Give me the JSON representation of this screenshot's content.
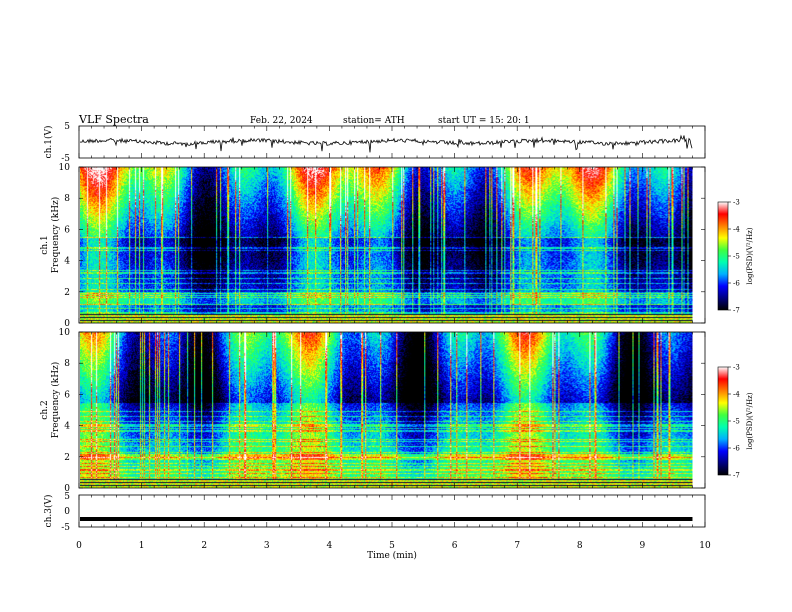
{
  "header": {
    "title": "VLF  Spectra",
    "date": "Feb. 22, 2024",
    "station": "station= ATH",
    "start": "start  UT  =    15: 20: 1"
  },
  "chart_data": [
    {
      "type": "line",
      "panel": "ch1-waveform",
      "ylabel": "ch.1(V)",
      "ylim": [
        -5,
        5
      ],
      "yticks": [
        "5",
        "-5"
      ],
      "xlim": [
        0,
        10
      ],
      "approx_level": 0,
      "data_extent_min": 9.8
    },
    {
      "type": "heatmap",
      "panel": "ch1-spectrogram",
      "ylabel": "Frequency  (kHz)",
      "channel_label": "ch.1",
      "ylim": [
        0,
        10
      ],
      "yticks": [
        "0",
        "2",
        "4",
        "6",
        "8",
        "10"
      ],
      "xlim": [
        0,
        10
      ],
      "data_extent_min": 9.8
    },
    {
      "type": "heatmap",
      "panel": "ch2-spectrogram",
      "ylabel": "Frequency  (kHz)",
      "channel_label": "ch.2",
      "ylim": [
        0,
        10
      ],
      "yticks": [
        "0",
        "2",
        "4",
        "6",
        "8",
        "10"
      ],
      "xlim": [
        0,
        10
      ],
      "data_extent_min": 9.8
    },
    {
      "type": "line",
      "panel": "ch3-waveform",
      "ylabel": "ch.3(V)",
      "ylim": [
        -5,
        5
      ],
      "yticks": [
        "5",
        "0",
        "-5"
      ],
      "xlim": [
        0,
        10
      ],
      "approx_level": -2.5,
      "data_extent_min": 9.8
    }
  ],
  "xaxis": {
    "label": "Time  (min)",
    "ticks": [
      "0",
      "1",
      "2",
      "3",
      "4",
      "5",
      "6",
      "7",
      "8",
      "9",
      "10"
    ]
  },
  "colorbar": {
    "label": "log(PSD)(V²/Hz)",
    "ticks": [
      "-3",
      "-4",
      "-5",
      "-6",
      "-7"
    ],
    "range": [
      -7,
      -3
    ]
  },
  "colors": {
    "scale": [
      "#000000",
      "#000080",
      "#0000ff",
      "#00b0ff",
      "#00ffb0",
      "#40ff40",
      "#ffff00",
      "#ff8000",
      "#ff0000",
      "#ffffff"
    ]
  }
}
